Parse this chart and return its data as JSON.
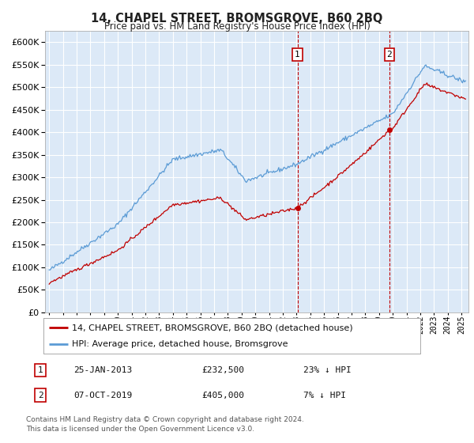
{
  "title": "14, CHAPEL STREET, BROMSGROVE, B60 2BQ",
  "subtitle": "Price paid vs. HM Land Registry's House Price Index (HPI)",
  "ylim": [
    0,
    625000
  ],
  "yticks": [
    0,
    50000,
    100000,
    150000,
    200000,
    250000,
    300000,
    350000,
    400000,
    450000,
    500000,
    550000,
    600000
  ],
  "background_color": "#ffffff",
  "plot_bg_color": "#dce9f7",
  "grid_color": "#ffffff",
  "sale1_date_num": 2013.07,
  "sale2_date_num": 2019.76,
  "sale1_price": 232500,
  "sale2_price": 405000,
  "sale1_label": "1",
  "sale2_label": "2",
  "legend_line1": "14, CHAPEL STREET, BROMSGROVE, B60 2BQ (detached house)",
  "legend_line2": "HPI: Average price, detached house, Bromsgrove",
  "table_row1": [
    "1",
    "25-JAN-2013",
    "£232,500",
    "23% ↓ HPI"
  ],
  "table_row2": [
    "2",
    "07-OCT-2019",
    "£405,000",
    "7% ↓ HPI"
  ],
  "footnote": "Contains HM Land Registry data © Crown copyright and database right 2024.\nThis data is licensed under the Open Government Licence v3.0.",
  "hpi_color": "#5b9bd5",
  "price_color": "#c00000",
  "vline_color": "#c00000",
  "xlim_left": 1994.7,
  "xlim_right": 2025.5
}
